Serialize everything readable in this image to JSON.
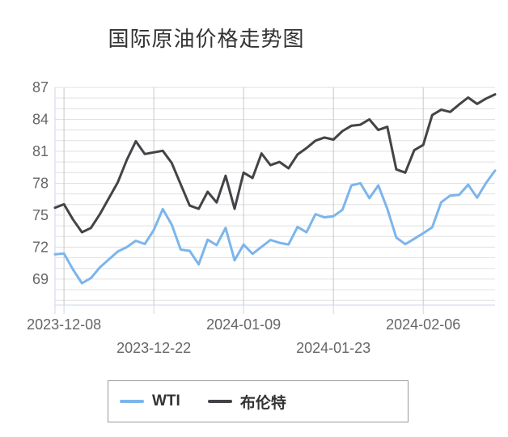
{
  "title": "国际原油价格走势图",
  "colors": {
    "grid_minor": "#e0e0e0",
    "grid_vertical": "#c8c8c8",
    "axis_line": "#ccd6eb",
    "axis_label": "#666666",
    "title_text": "#333333",
    "legend_border": "#999999"
  },
  "chart_data": {
    "type": "line",
    "title": "国际原油价格走势图",
    "xlabel": "",
    "ylabel": "",
    "ylim": [
      66.5,
      87.1
    ],
    "y_ticks": [
      69,
      72,
      75,
      78,
      81,
      84,
      87
    ],
    "grid": "horizontal minor gridlines every 1 unit, vertical gridlines at labeled dates",
    "legend_position": "bottom",
    "x_tick_labels": [
      "2023-12-08",
      "2023-12-22",
      "2024-01-09",
      "2024-01-23",
      "2024-02-06"
    ],
    "x_tick_indices": [
      1,
      11,
      21,
      31,
      41
    ],
    "categories": [
      "2023-12-07",
      "2023-12-08",
      "2023-12-11",
      "2023-12-12",
      "2023-12-13",
      "2023-12-14",
      "2023-12-15",
      "2023-12-18",
      "2023-12-19",
      "2023-12-20",
      "2023-12-21",
      "2023-12-22",
      "2023-12-26",
      "2023-12-27",
      "2023-12-28",
      "2023-12-29",
      "2024-01-02",
      "2024-01-03",
      "2024-01-04",
      "2024-01-05",
      "2024-01-08",
      "2024-01-09",
      "2024-01-10",
      "2024-01-11",
      "2024-01-12",
      "2024-01-15",
      "2024-01-16",
      "2024-01-17",
      "2024-01-18",
      "2024-01-19",
      "2024-01-22",
      "2024-01-23",
      "2024-01-24",
      "2024-01-25",
      "2024-01-26",
      "2024-01-29",
      "2024-01-30",
      "2024-01-31",
      "2024-02-01",
      "2024-02-02",
      "2024-02-05",
      "2024-02-06",
      "2024-02-07",
      "2024-02-08",
      "2024-02-09",
      "2024-02-12",
      "2024-02-13",
      "2024-02-14",
      "2024-02-15",
      "2024-02-16"
    ],
    "series": [
      {
        "id": "wti",
        "name": "WTI",
        "color": "#7cb5ec",
        "values": [
          71.32,
          71.4,
          69.9,
          68.61,
          69.1,
          70.1,
          70.85,
          71.6,
          72.0,
          72.6,
          72.3,
          73.6,
          75.57,
          74.11,
          71.77,
          71.65,
          70.38,
          72.7,
          72.19,
          73.81,
          70.77,
          72.24,
          71.37,
          72.02,
          72.68,
          72.4,
          72.25,
          73.9,
          73.4,
          75.1,
          74.8,
          74.9,
          75.5,
          77.8,
          78.0,
          76.6,
          77.8,
          75.6,
          72.9,
          72.28,
          72.78,
          73.31,
          73.86,
          76.22,
          76.84,
          76.92,
          77.87,
          76.64,
          78.03,
          79.19
        ]
      },
      {
        "id": "brent",
        "name": "布伦特",
        "color": "#434348",
        "values": [
          75.7,
          76.03,
          74.6,
          73.4,
          73.8,
          75.1,
          76.6,
          78.1,
          80.2,
          81.95,
          80.75,
          80.9,
          81.05,
          79.9,
          77.9,
          75.9,
          75.6,
          77.2,
          76.2,
          78.7,
          75.6,
          79.0,
          78.5,
          80.8,
          79.7,
          80.0,
          79.4,
          80.7,
          81.3,
          82.0,
          82.3,
          82.1,
          82.9,
          83.4,
          83.5,
          84.0,
          83.0,
          83.3,
          79.3,
          79.0,
          81.1,
          81.6,
          84.4,
          84.9,
          84.7,
          85.4,
          86.05,
          85.45,
          85.95,
          86.35
        ]
      }
    ]
  }
}
